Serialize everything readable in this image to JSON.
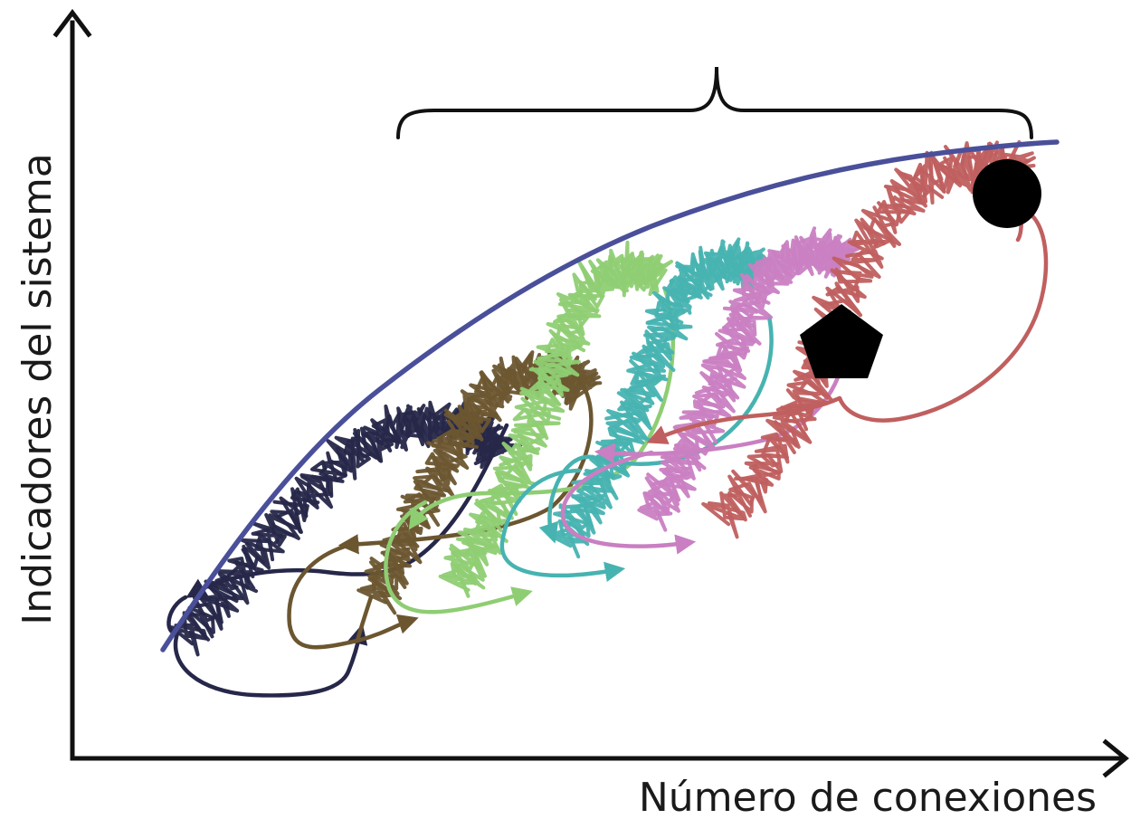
{
  "axes": {
    "x_label": "Número de conexiones",
    "y_label": "Indicadores del sistema"
  },
  "colors": {
    "axis": "#111111",
    "envelope": "#4a4f9a",
    "markers": "#000000",
    "cycles": [
      "#262749",
      "#6b5630",
      "#8fcd73",
      "#47b3b1",
      "#c97fc2",
      "#c05f5f"
    ]
  },
  "cycles": [
    {
      "id": "cycle-1",
      "color": "#262749"
    },
    {
      "id": "cycle-2",
      "color": "#6b5630"
    },
    {
      "id": "cycle-3",
      "color": "#8fcd73"
    },
    {
      "id": "cycle-4",
      "color": "#47b3b1"
    },
    {
      "id": "cycle-5",
      "color": "#c97fc2"
    },
    {
      "id": "cycle-6",
      "color": "#c05f5f"
    }
  ],
  "markers": [
    "circle",
    "pentagon"
  ]
}
